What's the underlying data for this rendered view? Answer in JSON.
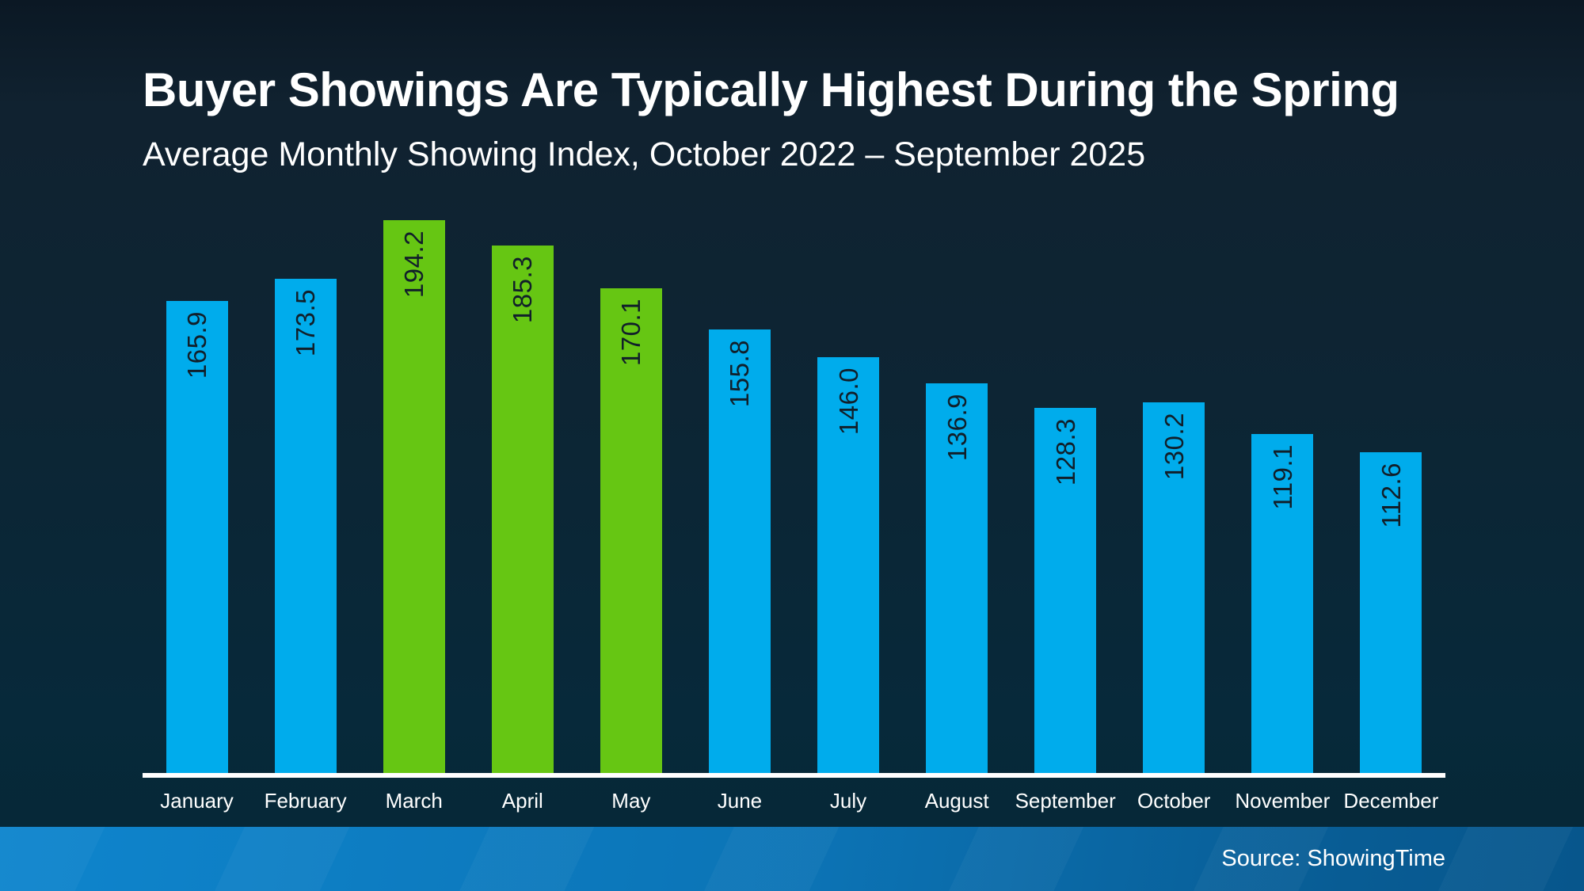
{
  "header": {
    "title": "Buyer Showings Are Typically Highest During the Spring",
    "subtitle": "Average Monthly Showing Index, October 2022 – September 2025"
  },
  "footer": {
    "source_label": "Source: ShowingTime"
  },
  "colors": {
    "background_top": "#0B1824",
    "background_bottom": "#052836",
    "bar_default": "#00ACEC",
    "bar_highlight": "#66C613",
    "value_label_text": "#111F2A",
    "axis_baseline": "#FFFFFF",
    "month_label_text": "#FFFFFF",
    "footer_gradient_start": "#0E85CD",
    "footer_gradient_end": "#07568C"
  },
  "chart_data": {
    "type": "bar",
    "title": "Buyer Showings Are Typically Highest During the Spring",
    "subtitle": "Average Monthly Showing Index, October 2022 – September 2025",
    "categories": [
      "January",
      "February",
      "March",
      "April",
      "May",
      "June",
      "July",
      "August",
      "September",
      "October",
      "November",
      "December"
    ],
    "values": [
      165.9,
      173.5,
      194.2,
      185.3,
      170.1,
      155.8,
      146.0,
      136.9,
      128.3,
      130.2,
      119.1,
      112.6
    ],
    "value_labels": [
      "165.9",
      "173.5",
      "194.2",
      "185.3",
      "170.1",
      "155.8",
      "146.0",
      "136.9",
      "128.3",
      "130.2",
      "119.1",
      "112.6"
    ],
    "highlighted_categories": [
      "March",
      "April",
      "May"
    ],
    "bar_color_default": "#00ACEC",
    "bar_color_highlight": "#66C613",
    "xlabel": "",
    "ylabel": "",
    "ylim": [
      0,
      210
    ],
    "grid": false,
    "legend": false,
    "value_labels_rotated": true,
    "source": "Source: ShowingTime"
  }
}
